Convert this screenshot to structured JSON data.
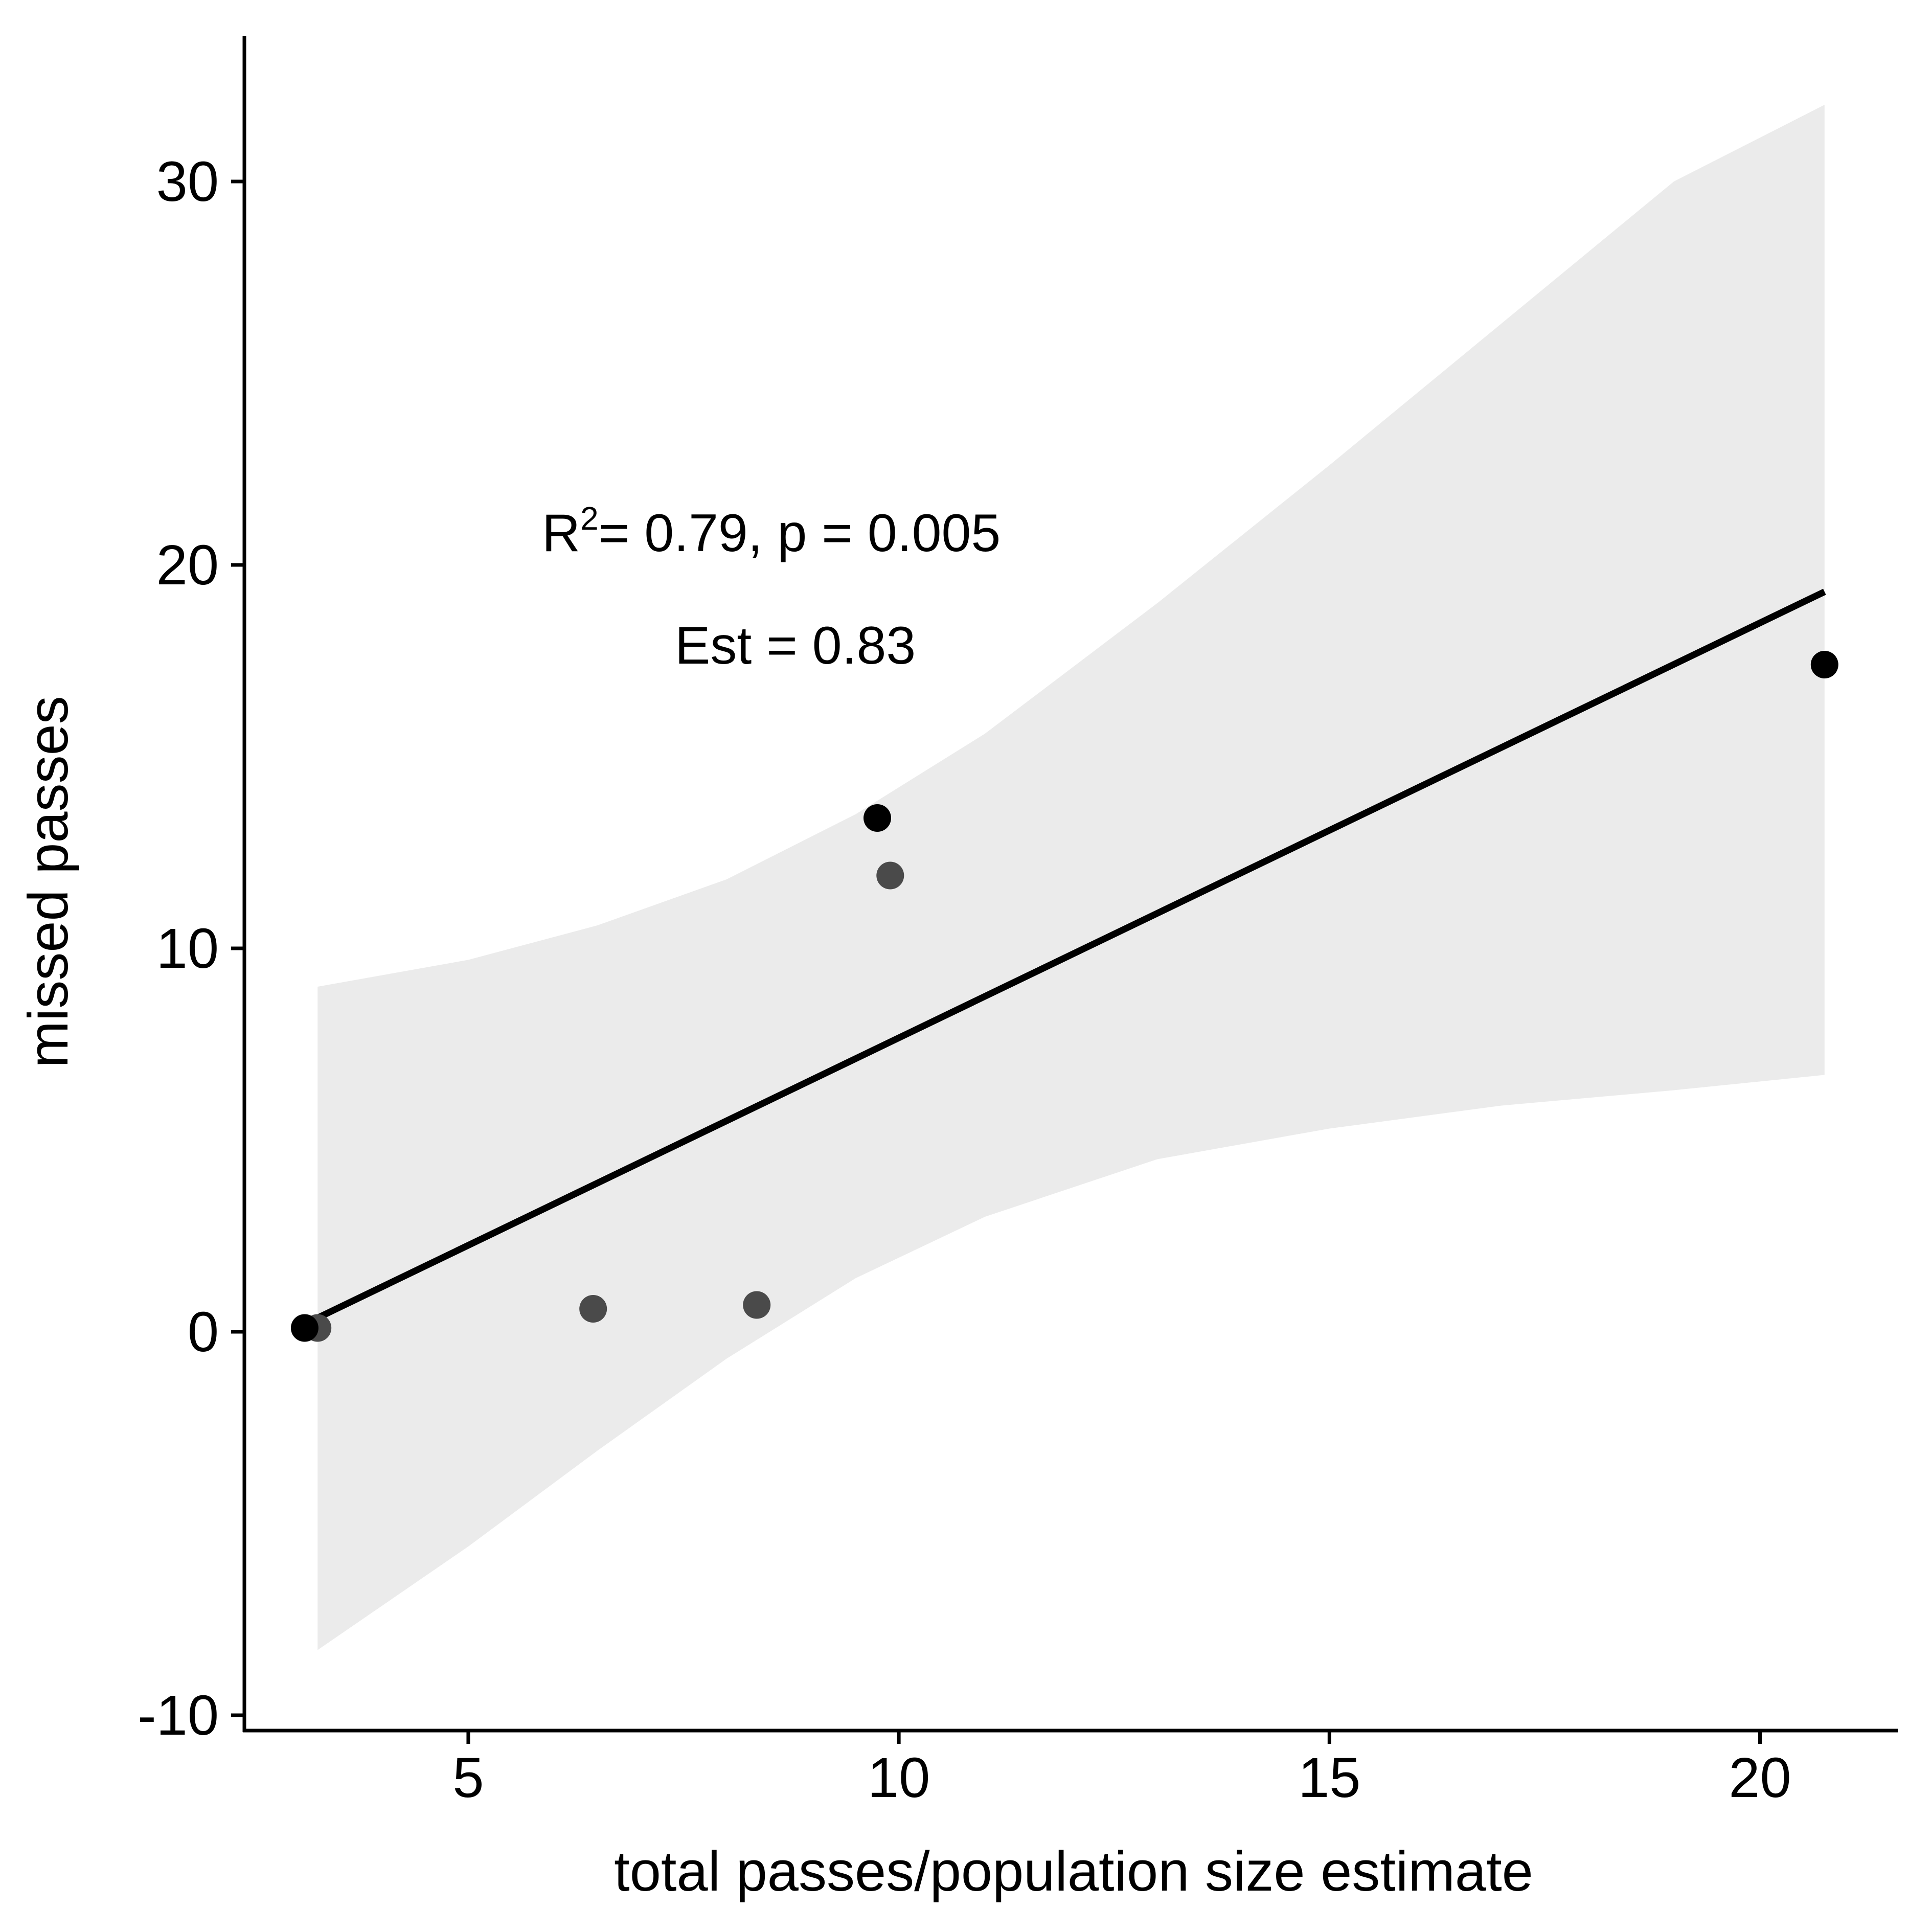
{
  "chart_data": {
    "type": "scatter",
    "xlabel": "total passes/population size estimate",
    "ylabel": "missed passes",
    "xlim": [
      2.4,
      21.6
    ],
    "ylim": [
      -10.4,
      33.8
    ],
    "x_ticks": [
      5,
      10,
      15,
      20
    ],
    "y_ticks": [
      -10,
      0,
      10,
      20,
      30
    ],
    "x_tick_labels": [
      "5",
      "10",
      "15",
      "20"
    ],
    "y_tick_labels": [
      "-10",
      "0",
      "10",
      "20",
      "30"
    ],
    "grid": false,
    "legend": "none",
    "series": [
      {
        "points": [
          {
            "x": 3.25,
            "y": 0.1,
            "shade": "#4a4a4a"
          },
          {
            "x": 6.45,
            "y": 0.6,
            "shade": "#4a4a4a"
          },
          {
            "x": 8.35,
            "y": 0.7,
            "shade": "#4a4a4a"
          },
          {
            "x": 9.75,
            "y": 13.4,
            "shade": "#000000"
          },
          {
            "x": 9.9,
            "y": 11.9,
            "shade": "#4a4a4a"
          },
          {
            "x": 20.75,
            "y": 17.4,
            "shade": "#000000"
          },
          {
            "x": 3.1,
            "y": 0.1,
            "shade": "#000000"
          }
        ]
      }
    ],
    "fit_line": {
      "x": [
        3.1,
        20.75
      ],
      "y": [
        0.2,
        19.3
      ],
      "color": "#000000"
    },
    "confidence_band": {
      "color": "#ebebeb",
      "x": [
        3.25,
        5.0,
        6.5,
        8.0,
        9.5,
        11.0,
        13.0,
        15.0,
        17.0,
        19.0,
        20.75
      ],
      "upper": [
        9.0,
        9.7,
        10.6,
        11.8,
        13.5,
        15.6,
        19.0,
        22.6,
        26.3,
        30.0,
        32.0
      ],
      "lower": [
        -8.3,
        -5.6,
        -3.1,
        -0.7,
        1.4,
        3.0,
        4.5,
        5.3,
        5.9,
        6.3,
        6.7
      ]
    },
    "annotations": {
      "r2_prefix": "R",
      "r2_superscript": "2",
      "r2_text": "= 0.79, p = 0.005",
      "est_text": "Est = 0.83"
    }
  }
}
